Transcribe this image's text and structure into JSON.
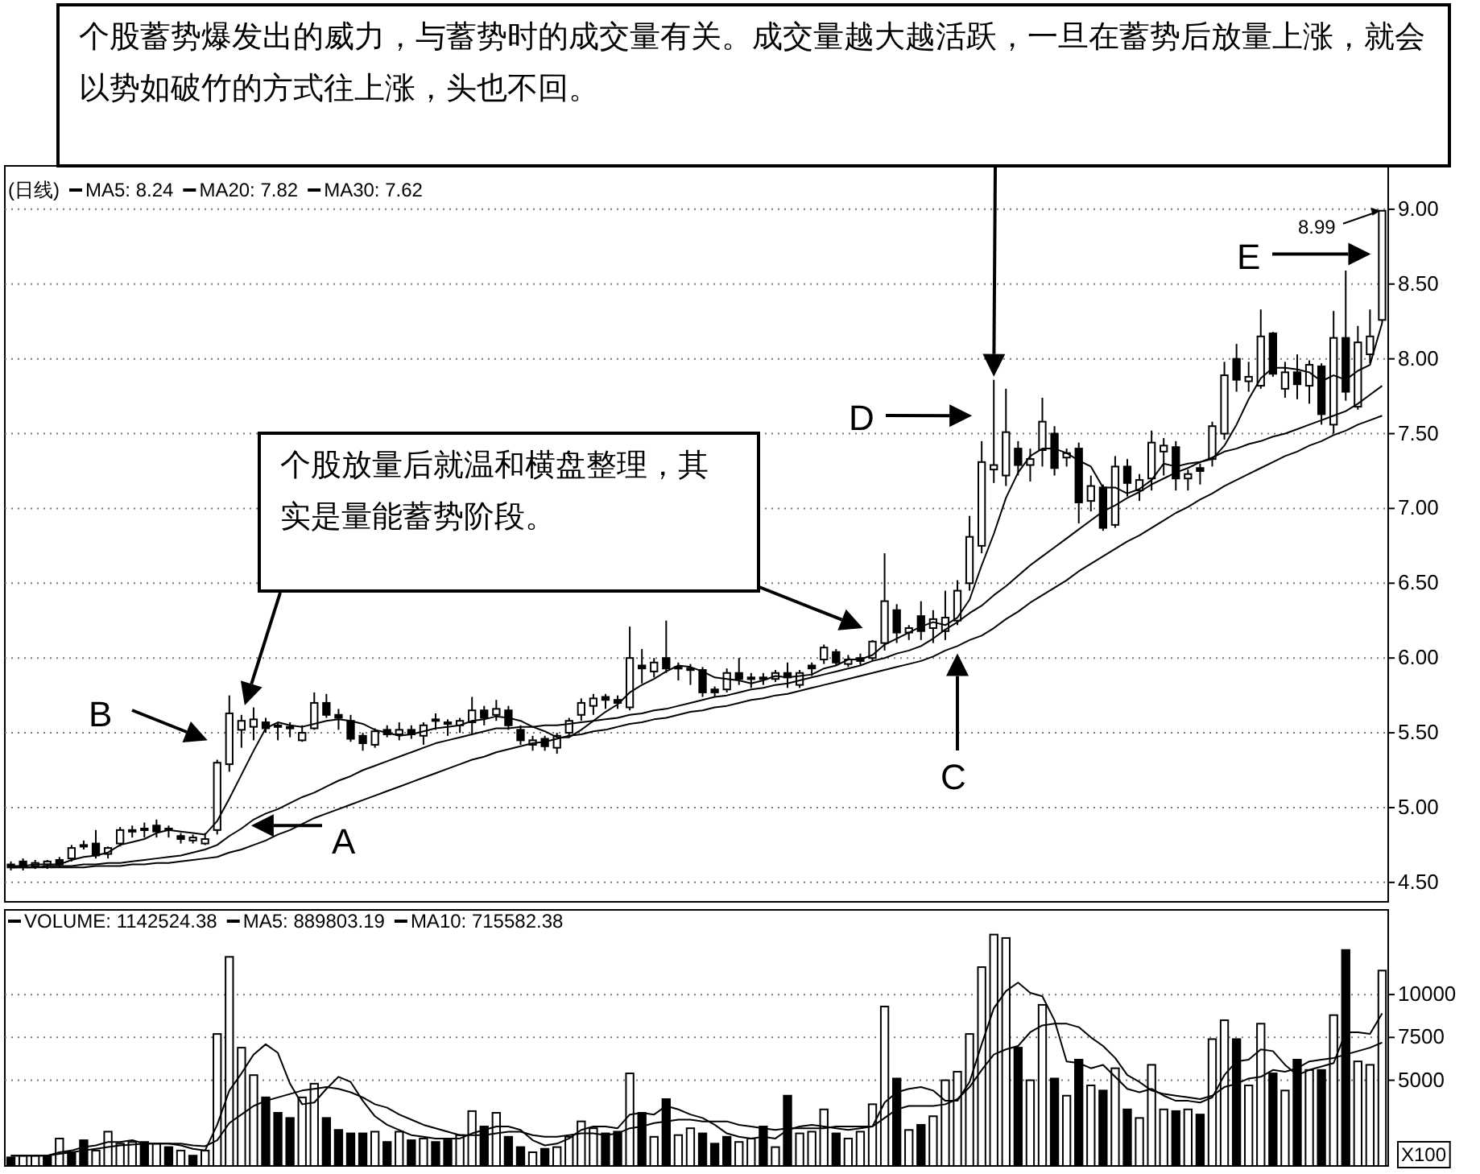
{
  "chart_data": [
    {
      "type": "candlestick",
      "title": "(日线)",
      "categories": [
        null,
        null,
        null,
        null,
        null,
        null,
        null,
        null,
        null,
        null,
        null,
        null,
        null,
        null,
        null,
        null,
        null,
        null,
        null,
        null,
        null,
        null,
        null,
        null,
        null,
        null,
        null,
        null,
        null,
        null,
        null,
        null,
        null,
        null,
        null,
        null,
        null,
        null,
        null,
        null,
        null,
        null,
        null,
        null,
        null,
        null,
        null,
        null,
        null,
        null,
        null,
        null,
        null,
        null,
        null,
        null,
        null,
        null,
        null,
        null,
        null,
        null,
        null,
        null,
        null,
        null,
        null,
        null,
        null,
        null,
        null,
        null,
        null,
        null,
        null,
        null,
        null,
        null,
        null,
        null,
        null,
        null,
        null,
        null,
        null,
        null,
        null,
        null,
        null,
        null,
        null,
        null,
        null,
        null,
        null,
        null,
        null,
        null,
        null,
        null,
        null,
        null,
        null,
        null,
        null,
        null,
        null,
        null,
        null,
        null,
        null,
        null,
        null,
        null
      ],
      "ohlc": [
        [
          4.62,
          4.64,
          4.58,
          4.6
        ],
        [
          4.64,
          4.66,
          4.58,
          4.61
        ],
        [
          4.61,
          4.65,
          4.59,
          4.63
        ],
        [
          4.62,
          4.65,
          4.59,
          4.64
        ],
        [
          4.65,
          4.67,
          4.6,
          4.62
        ],
        [
          4.66,
          4.75,
          4.64,
          4.73
        ],
        [
          4.75,
          4.78,
          4.72,
          4.74
        ],
        [
          4.76,
          4.85,
          4.66,
          4.68
        ],
        [
          4.69,
          4.74,
          4.66,
          4.73
        ],
        [
          4.76,
          4.87,
          4.74,
          4.85
        ],
        [
          4.84,
          4.88,
          4.8,
          4.85
        ],
        [
          4.85,
          4.9,
          4.8,
          4.86
        ],
        [
          4.88,
          4.92,
          4.8,
          4.84
        ],
        [
          4.85,
          4.88,
          4.8,
          4.86
        ],
        [
          4.81,
          4.83,
          4.76,
          4.79
        ],
        [
          4.78,
          4.82,
          4.76,
          4.8
        ],
        [
          4.76,
          4.83,
          4.75,
          4.79
        ],
        [
          4.85,
          5.32,
          4.82,
          5.3
        ],
        [
          5.29,
          5.75,
          5.24,
          5.63
        ],
        [
          5.52,
          5.62,
          5.4,
          5.58
        ],
        [
          5.54,
          5.67,
          5.45,
          5.59
        ],
        [
          5.57,
          5.6,
          5.5,
          5.53
        ],
        [
          5.55,
          5.57,
          5.45,
          5.54
        ],
        [
          5.54,
          5.57,
          5.47,
          5.53
        ],
        [
          5.45,
          5.55,
          5.44,
          5.5
        ],
        [
          5.53,
          5.77,
          5.52,
          5.7
        ],
        [
          5.7,
          5.76,
          5.6,
          5.62
        ],
        [
          5.62,
          5.66,
          5.52,
          5.6
        ],
        [
          5.58,
          5.62,
          5.44,
          5.46
        ],
        [
          5.48,
          5.5,
          5.38,
          5.43
        ],
        [
          5.42,
          5.53,
          5.4,
          5.51
        ],
        [
          5.52,
          5.55,
          5.47,
          5.49
        ],
        [
          5.49,
          5.57,
          5.45,
          5.52
        ],
        [
          5.52,
          5.55,
          5.46,
          5.49
        ],
        [
          5.48,
          5.57,
          5.42,
          5.55
        ],
        [
          5.59,
          5.63,
          5.52,
          5.58
        ],
        [
          5.57,
          5.59,
          5.48,
          5.56
        ],
        [
          5.55,
          5.6,
          5.5,
          5.58
        ],
        [
          5.57,
          5.74,
          5.49,
          5.65
        ],
        [
          5.65,
          5.68,
          5.55,
          5.6
        ],
        [
          5.62,
          5.72,
          5.58,
          5.66
        ],
        [
          5.65,
          5.68,
          5.52,
          5.55
        ],
        [
          5.52,
          5.55,
          5.42,
          5.45
        ],
        [
          5.42,
          5.48,
          5.38,
          5.45
        ],
        [
          5.46,
          5.48,
          5.38,
          5.41
        ],
        [
          5.4,
          5.5,
          5.36,
          5.48
        ],
        [
          5.5,
          5.6,
          5.48,
          5.58
        ],
        [
          5.62,
          5.73,
          5.58,
          5.7
        ],
        [
          5.68,
          5.76,
          5.62,
          5.73
        ],
        [
          5.74,
          5.76,
          5.66,
          5.72
        ],
        [
          5.72,
          5.75,
          5.66,
          5.7
        ],
        [
          5.67,
          6.21,
          5.65,
          6.0
        ],
        [
          5.95,
          6.06,
          5.83,
          5.93
        ],
        [
          5.91,
          6.0,
          5.87,
          5.97
        ],
        [
          6.0,
          6.25,
          5.9,
          5.93
        ],
        [
          5.93,
          5.97,
          5.85,
          5.94
        ],
        [
          5.92,
          5.96,
          5.82,
          5.93
        ],
        [
          5.92,
          5.94,
          5.74,
          5.77
        ],
        [
          5.79,
          5.81,
          5.74,
          5.77
        ],
        [
          5.79,
          5.93,
          5.77,
          5.9
        ],
        [
          5.9,
          6.0,
          5.82,
          5.86
        ],
        [
          5.86,
          5.9,
          5.8,
          5.87
        ],
        [
          5.87,
          5.9,
          5.82,
          5.86
        ],
        [
          5.86,
          5.92,
          5.84,
          5.9
        ],
        [
          5.9,
          5.97,
          5.8,
          5.87
        ],
        [
          5.82,
          5.92,
          5.8,
          5.9
        ],
        [
          5.95,
          5.97,
          5.88,
          5.93
        ],
        [
          5.99,
          6.09,
          5.96,
          6.07
        ],
        [
          6.04,
          6.06,
          5.95,
          5.97
        ],
        [
          5.96,
          6.02,
          5.94,
          5.99
        ],
        [
          6.0,
          6.03,
          5.95,
          5.98
        ],
        [
          6.0,
          6.12,
          5.98,
          6.11
        ],
        [
          6.1,
          6.7,
          6.05,
          6.38
        ],
        [
          6.32,
          6.36,
          6.1,
          6.17
        ],
        [
          6.17,
          6.22,
          6.12,
          6.2
        ],
        [
          6.28,
          6.38,
          6.12,
          6.18
        ],
        [
          6.2,
          6.32,
          6.1,
          6.26
        ],
        [
          6.18,
          6.45,
          6.12,
          6.27
        ],
        [
          6.25,
          6.52,
          6.22,
          6.45
        ],
        [
          6.5,
          6.95,
          6.45,
          6.81
        ],
        [
          6.75,
          7.45,
          6.7,
          7.31
        ],
        [
          7.26,
          7.86,
          7.17,
          7.29
        ],
        [
          7.22,
          7.8,
          7.15,
          7.51
        ],
        [
          7.4,
          7.45,
          7.22,
          7.29
        ],
        [
          7.29,
          7.4,
          7.18,
          7.33
        ],
        [
          7.39,
          7.74,
          7.28,
          7.58
        ],
        [
          7.5,
          7.55,
          7.22,
          7.27
        ],
        [
          7.34,
          7.4,
          7.28,
          7.37
        ],
        [
          7.4,
          7.44,
          6.9,
          7.04
        ],
        [
          7.05,
          7.22,
          6.98,
          7.15
        ],
        [
          7.14,
          7.16,
          6.85,
          6.87
        ],
        [
          6.89,
          7.35,
          6.87,
          7.28
        ],
        [
          7.28,
          7.33,
          7.08,
          7.17
        ],
        [
          7.12,
          7.23,
          7.05,
          7.19
        ],
        [
          7.2,
          7.52,
          7.12,
          7.44
        ],
        [
          7.38,
          7.47,
          7.22,
          7.42
        ],
        [
          7.41,
          7.45,
          7.12,
          7.2
        ],
        [
          7.2,
          7.26,
          7.12,
          7.23
        ],
        [
          7.27,
          7.3,
          7.16,
          7.25
        ],
        [
          7.33,
          7.58,
          7.28,
          7.55
        ],
        [
          7.5,
          7.98,
          7.46,
          7.89
        ],
        [
          8.0,
          8.1,
          7.78,
          7.86
        ],
        [
          7.85,
          7.98,
          7.78,
          7.88
        ],
        [
          7.82,
          8.33,
          7.8,
          8.15
        ],
        [
          8.17,
          8.18,
          7.88,
          7.9
        ],
        [
          7.8,
          7.98,
          7.74,
          7.91
        ],
        [
          7.91,
          8.03,
          7.73,
          7.83
        ],
        [
          7.82,
          7.99,
          7.7,
          7.96
        ],
        [
          7.95,
          7.97,
          7.56,
          7.63
        ],
        [
          7.56,
          8.32,
          7.5,
          8.14
        ],
        [
          8.14,
          8.59,
          7.72,
          7.78
        ],
        [
          7.68,
          8.22,
          7.66,
          8.11
        ],
        [
          8.03,
          8.33,
          7.97,
          8.15
        ],
        [
          8.26,
          8.99,
          8.24,
          8.99
        ]
      ],
      "series": [
        {
          "name": "MA5: 8.24",
          "type": "line",
          "color": "#000000",
          "values": [
            4.61,
            4.61,
            4.62,
            4.62,
            4.62,
            4.65,
            4.67,
            4.68,
            4.7,
            4.75,
            4.77,
            4.79,
            4.83,
            4.85,
            4.84,
            4.83,
            4.82,
            4.91,
            5.06,
            5.22,
            5.38,
            5.53,
            5.57,
            5.55,
            5.54,
            5.56,
            5.58,
            5.59,
            5.58,
            5.56,
            5.52,
            5.5,
            5.48,
            5.49,
            5.51,
            5.53,
            5.54,
            5.55,
            5.58,
            5.59,
            5.61,
            5.6,
            5.58,
            5.54,
            5.51,
            5.47,
            5.47,
            5.52,
            5.58,
            5.64,
            5.69,
            5.77,
            5.82,
            5.86,
            5.91,
            5.95,
            5.94,
            5.91,
            5.87,
            5.86,
            5.85,
            5.83,
            5.85,
            5.88,
            5.87,
            5.88,
            5.89,
            5.93,
            5.95,
            5.99,
            5.99,
            6.02,
            6.09,
            6.13,
            6.17,
            6.21,
            6.24,
            6.22,
            6.27,
            6.39,
            6.62,
            6.83,
            7.07,
            7.24,
            7.35,
            7.4,
            7.4,
            7.37,
            7.32,
            7.28,
            7.14,
            7.14,
            7.1,
            7.13,
            7.19,
            7.3,
            7.28,
            7.3,
            7.31,
            7.33,
            7.42,
            7.56,
            7.73,
            7.87,
            7.94,
            7.94,
            7.93,
            7.91,
            7.85,
            7.89,
            7.86,
            7.92,
            7.96,
            8.24
          ]
        },
        {
          "name": "MA20: 7.82",
          "type": "line",
          "color": "#000000",
          "values": [
            4.6,
            4.6,
            4.6,
            4.61,
            4.61,
            4.61,
            4.62,
            4.62,
            4.63,
            4.63,
            4.64,
            4.65,
            4.66,
            4.67,
            4.68,
            4.7,
            4.72,
            4.75,
            4.81,
            4.86,
            4.92,
            4.96,
            4.99,
            5.03,
            5.07,
            5.1,
            5.14,
            5.18,
            5.21,
            5.25,
            5.28,
            5.31,
            5.34,
            5.37,
            5.4,
            5.43,
            5.45,
            5.47,
            5.49,
            5.51,
            5.53,
            5.53,
            5.54,
            5.54,
            5.55,
            5.55,
            5.56,
            5.57,
            5.58,
            5.59,
            5.6,
            5.62,
            5.63,
            5.65,
            5.66,
            5.68,
            5.7,
            5.72,
            5.74,
            5.75,
            5.77,
            5.79,
            5.8,
            5.82,
            5.83,
            5.85,
            5.87,
            5.89,
            5.91,
            5.93,
            5.95,
            5.98,
            6.0,
            6.03,
            6.05,
            6.08,
            6.13,
            6.19,
            6.24,
            6.3,
            6.35,
            6.42,
            6.48,
            6.55,
            6.62,
            6.68,
            6.74,
            6.8,
            6.86,
            6.92,
            6.98,
            7.02,
            7.07,
            7.11,
            7.16,
            7.2,
            7.24,
            7.27,
            7.31,
            7.34,
            7.38,
            7.4,
            7.43,
            7.45,
            7.48,
            7.5,
            7.53,
            7.56,
            7.59,
            7.62,
            7.65,
            7.7,
            7.76,
            7.82
          ]
        },
        {
          "name": "MA30: 7.62",
          "type": "line",
          "color": "#000000",
          "values": [
            4.6,
            4.6,
            4.6,
            4.6,
            4.6,
            4.6,
            4.6,
            4.61,
            4.61,
            4.61,
            4.62,
            4.62,
            4.63,
            4.63,
            4.64,
            4.65,
            4.66,
            4.67,
            4.7,
            4.72,
            4.75,
            4.78,
            4.82,
            4.85,
            4.89,
            4.93,
            4.96,
            4.99,
            5.02,
            5.05,
            5.08,
            5.11,
            5.14,
            5.17,
            5.2,
            5.23,
            5.26,
            5.29,
            5.32,
            5.34,
            5.37,
            5.39,
            5.41,
            5.43,
            5.44,
            5.46,
            5.48,
            5.49,
            5.51,
            5.52,
            5.54,
            5.56,
            5.57,
            5.59,
            5.6,
            5.62,
            5.64,
            5.65,
            5.67,
            5.68,
            5.7,
            5.72,
            5.73,
            5.75,
            5.76,
            5.78,
            5.8,
            5.82,
            5.84,
            5.86,
            5.88,
            5.9,
            5.92,
            5.94,
            5.96,
            5.98,
            6.01,
            6.05,
            6.08,
            6.12,
            6.15,
            6.2,
            6.26,
            6.31,
            6.37,
            6.42,
            6.47,
            6.52,
            6.58,
            6.63,
            6.68,
            6.73,
            6.78,
            6.82,
            6.87,
            6.92,
            6.97,
            7.01,
            7.06,
            7.1,
            7.15,
            7.19,
            7.23,
            7.27,
            7.31,
            7.35,
            7.38,
            7.42,
            7.45,
            7.49,
            7.52,
            7.56,
            7.59,
            7.62
          ]
        }
      ],
      "ylim": [
        4.37,
        9.29
      ],
      "yticks": [
        {
          "value": 4.5,
          "label": "4.50"
        },
        {
          "value": 5.0,
          "label": "5.00"
        },
        {
          "value": 5.5,
          "label": "5.50"
        },
        {
          "value": 6.0,
          "label": "6.00"
        },
        {
          "value": 6.5,
          "label": "6.50"
        },
        {
          "value": 7.0,
          "label": "7.00"
        },
        {
          "value": 7.5,
          "label": "7.50"
        },
        {
          "value": 8.0,
          "label": "8.00"
        },
        {
          "value": 8.5,
          "label": "8.50"
        },
        {
          "value": 9.0,
          "label": "9.00"
        }
      ],
      "grid": "y",
      "legend": "top left",
      "tick_labels": "y",
      "annotations": [
        "个股蓄势爆发出的威力，与蓄势时的成交量有关。成交量越大越活跃，一旦在蓄势后放量上涨，就会以势如破竹的方式往上涨，头也不回。",
        "个股放量后就温和横盘整理，其实是量能蓄势阶段。",
        "A",
        "B",
        "C",
        "D",
        "E",
        "8.99"
      ]
    },
    {
      "type": "bar",
      "categories": [
        null,
        null,
        null,
        null,
        null,
        null,
        null,
        null,
        null,
        null,
        null,
        null,
        null,
        null,
        null,
        null,
        null,
        null,
        null,
        null,
        null,
        null,
        null,
        null,
        null,
        null,
        null,
        null,
        null,
        null,
        null,
        null,
        null,
        null,
        null,
        null,
        null,
        null,
        null,
        null,
        null,
        null,
        null,
        null,
        null,
        null,
        null,
        null,
        null,
        null,
        null,
        null,
        null,
        null,
        null,
        null,
        null,
        null,
        null,
        null,
        null,
        null,
        null,
        null,
        null,
        null,
        null,
        null,
        null,
        null,
        null,
        null,
        null,
        null,
        null,
        null,
        null,
        null,
        null,
        null,
        null,
        null,
        null,
        null,
        null,
        null,
        null,
        null,
        null,
        null,
        null,
        null,
        null,
        null,
        null,
        null,
        null,
        null,
        null,
        null,
        null,
        null,
        null,
        null,
        null,
        null,
        null,
        null,
        null,
        null,
        null,
        null,
        null,
        null
      ],
      "series": [
        {
          "name": "VOLUME: 1142524.38",
          "type": "bar",
          "values": [
            500,
            600,
            600,
            600,
            1600,
            800,
            1500,
            900,
            2000,
            1300,
            1400,
            1400,
            1300,
            1100,
            900,
            600,
            900,
            7700,
            12200,
            6900,
            5300,
            4000,
            3100,
            2800,
            4000,
            4800,
            2800,
            2100,
            1900,
            1900,
            2000,
            1400,
            2000,
            1500,
            1600,
            1400,
            1500,
            1800,
            3200,
            2300,
            3100,
            1700,
            1100,
            800,
            1000,
            1100,
            1700,
            2600,
            2200,
            1900,
            2000,
            5400,
            3100,
            1700,
            3900,
            1800,
            2200,
            1900,
            1300,
            1700,
            1400,
            1600,
            2300,
            1100,
            4100,
            1900,
            2000,
            3300,
            1900,
            1600,
            2000,
            3600,
            9300,
            5100,
            2100,
            2400,
            2900,
            5000,
            5500,
            7700,
            11600,
            13500,
            13300,
            6900,
            5000,
            9400,
            5100,
            4100,
            6200,
            4700,
            4400,
            5700,
            3300,
            2800,
            5900,
            3300,
            3200,
            3300,
            3000,
            7400,
            8500,
            7400,
            4700,
            8300,
            5400,
            4400,
            6200,
            5600,
            5600,
            8800,
            12600,
            6100,
            5900,
            11400
          ],
          "colors": [
            "#000000",
            "#ffffff",
            "#ffffff",
            "#000000",
            "#ffffff",
            "#000000",
            "#000000",
            "#ffffff",
            "#ffffff",
            "#ffffff",
            "#ffffff",
            "#000000",
            "#ffffff",
            "#000000",
            "#ffffff",
            "#000000",
            "#ffffff",
            "#ffffff",
            "#ffffff",
            "#ffffff",
            "#ffffff",
            "#000000",
            "#000000",
            "#000000",
            "#ffffff",
            "#ffffff",
            "#000000",
            "#000000",
            "#000000",
            "#000000",
            "#ffffff",
            "#000000",
            "#ffffff",
            "#000000",
            "#ffffff",
            "#000000",
            "#000000",
            "#ffffff",
            "#ffffff",
            "#000000",
            "#ffffff",
            "#000000",
            "#000000",
            "#ffffff",
            "#000000",
            "#ffffff",
            "#ffffff",
            "#ffffff",
            "#ffffff",
            "#000000",
            "#000000",
            "#ffffff",
            "#000000",
            "#ffffff",
            "#000000",
            "#ffffff",
            "#ffffff",
            "#000000",
            "#000000",
            "#000000",
            "#ffffff",
            "#ffffff",
            "#000000",
            "#ffffff",
            "#000000",
            "#ffffff",
            "#ffffff",
            "#ffffff",
            "#000000",
            "#ffffff",
            "#ffffff",
            "#ffffff",
            "#ffffff",
            "#000000",
            "#ffffff",
            "#000000",
            "#ffffff",
            "#ffffff",
            "#ffffff",
            "#ffffff",
            "#ffffff",
            "#ffffff",
            "#ffffff",
            "#000000",
            "#ffffff",
            "#ffffff",
            "#000000",
            "#ffffff",
            "#000000",
            "#ffffff",
            "#000000",
            "#ffffff",
            "#000000",
            "#ffffff",
            "#ffffff",
            "#ffffff",
            "#000000",
            "#ffffff",
            "#000000",
            "#ffffff",
            "#ffffff",
            "#000000",
            "#ffffff",
            "#ffffff",
            "#000000",
            "#ffffff",
            "#000000",
            "#ffffff",
            "#000000",
            "#ffffff",
            "#000000",
            "#ffffff",
            "#ffffff",
            "#ffffff"
          ]
        },
        {
          "name": "MA5: 889803.19",
          "type": "line",
          "color": "#000000",
          "values": [
            600,
            600,
            600,
            600,
            800,
            900,
            1100,
            1200,
            1400,
            1400,
            1500,
            1300,
            1300,
            1300,
            1200,
            1000,
            900,
            2400,
            4400,
            5400,
            6500,
            7100,
            6600,
            4800,
            3600,
            3700,
            4500,
            5200,
            4900,
            3800,
            2900,
            2400,
            2100,
            1800,
            1700,
            1600,
            1600,
            1600,
            1900,
            2100,
            2300,
            2300,
            2100,
            1500,
            1200,
            1300,
            1600,
            2100,
            2300,
            2300,
            2200,
            3000,
            3100,
            3000,
            3500,
            3300,
            3000,
            2800,
            2400,
            1900,
            1700,
            1600,
            1700,
            1600,
            2100,
            2300,
            2400,
            2300,
            2200,
            2100,
            2200,
            2300,
            3700,
            4300,
            4500,
            4600,
            4400,
            3800,
            3800,
            4900,
            7100,
            9200,
            10200,
            10700,
            10100,
            9900,
            8500,
            6100,
            6000,
            5700,
            5900,
            5200,
            4500,
            4300,
            4500,
            4100,
            3800,
            3800,
            3700,
            4000,
            5300,
            6100,
            6200,
            6800,
            6700,
            5900,
            5300,
            5600,
            5800,
            6000,
            7800,
            7800,
            7700,
            8900
          ]
        },
        {
          "name": "MA10: 715582.38",
          "type": "line",
          "color": "#000000",
          "values": [
            600,
            600,
            600,
            600,
            700,
            800,
            900,
            1000,
            1100,
            1200,
            1250,
            1300,
            1300,
            1300,
            1300,
            1200,
            1150,
            1500,
            2500,
            3000,
            3500,
            3800,
            4000,
            4200,
            4400,
            4500,
            4600,
            4500,
            4300,
            4000,
            3600,
            3400,
            3000,
            2700,
            2400,
            2200,
            2000,
            1800,
            1800,
            1800,
            1900,
            2000,
            2000,
            1800,
            1700,
            1700,
            1800,
            1900,
            1900,
            1800,
            1900,
            2200,
            2300,
            2500,
            2600,
            2700,
            2700,
            2600,
            2600,
            2600,
            2400,
            2300,
            2200,
            2100,
            2200,
            2200,
            2200,
            2200,
            2300,
            2300,
            2300,
            2300,
            2800,
            3300,
            3500,
            3500,
            3500,
            3600,
            3900,
            4600,
            5600,
            6500,
            6800,
            7000,
            7800,
            8200,
            8300,
            8300,
            8100,
            7500,
            7000,
            6300,
            5300,
            4900,
            4400,
            4200,
            4100,
            4000,
            3900,
            4100,
            4600,
            4800,
            5100,
            5200,
            5600,
            5500,
            5700,
            6100,
            6200,
            6300,
            6500,
            6700,
            6900,
            7200
          ]
        }
      ],
      "ylim": [
        0,
        14940
      ],
      "yticks": [
        5000,
        7500,
        10000
      ],
      "ylabel": "X100",
      "grid": "y",
      "legend": "top left",
      "tick_labels": "y"
    }
  ]
}
